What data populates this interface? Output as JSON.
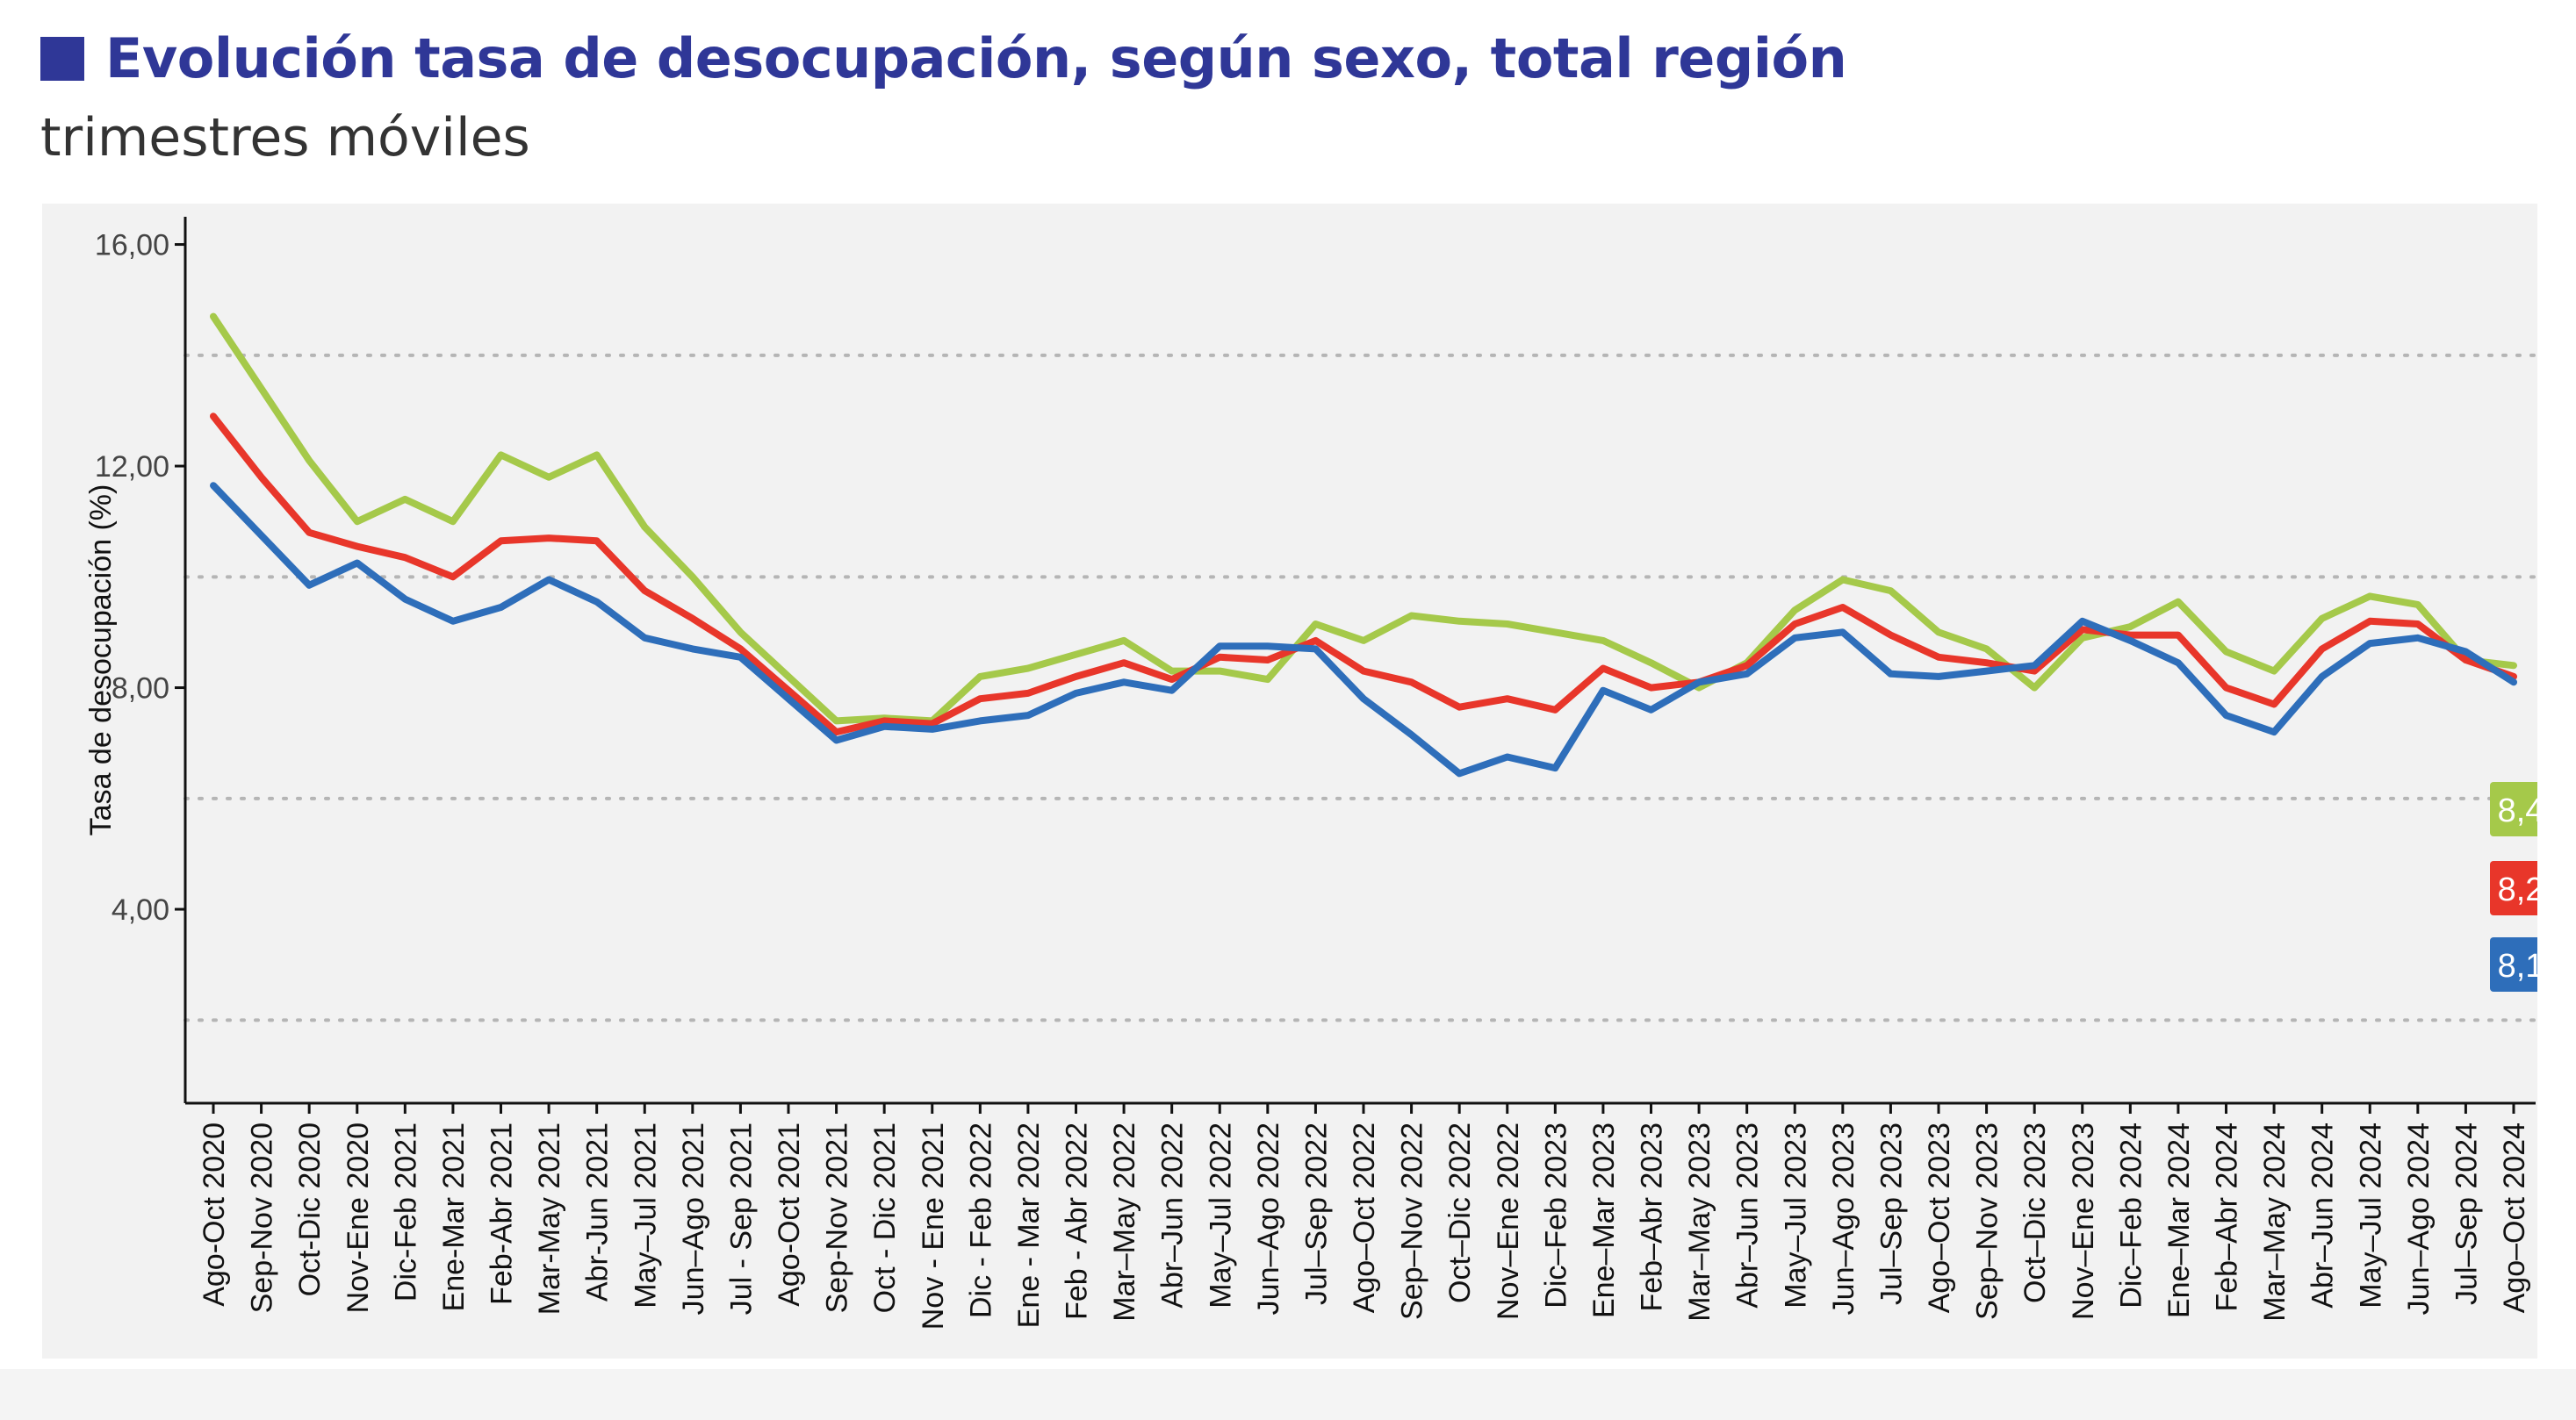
{
  "header": {
    "title": "Evolución tasa de desocupación, según sexo, total región",
    "subtitle": "trimestres móviles",
    "accent_color": "#2f3797"
  },
  "chart_data": {
    "type": "line",
    "title": "Evolución tasa de desocupación, según sexo, total región",
    "subtitle": "trimestres móviles",
    "xlabel": "",
    "ylabel": "Tasa de desocupación (%)",
    "ylim": [
      0.5,
      16.5
    ],
    "yticks": [
      4,
      8,
      12,
      16
    ],
    "ytick_labels": [
      "4,00",
      "8,00",
      "12,00",
      "16,00"
    ],
    "grid": "dotted horizontal lines at 2, 6, 10, 14",
    "background": "#f2f2f2",
    "categories": [
      "Ago-Oct 2020",
      "Sep-Nov 2020",
      "Oct-Dic 2020",
      "Nov-Ene 2020",
      "Dic-Feb 2021",
      "Ene-Mar 2021",
      "Feb-Abr 2021",
      "Mar-May 2021",
      "Abr-Jun 2021",
      "May–Jul 2021",
      "Jun–Ago 2021",
      "Jul - Sep 2021",
      "Ago-Oct 2021",
      "Sep-Nov 2021",
      "Oct - Dic 2021",
      "Nov - Ene 2021",
      "Dic - Feb 2022",
      "Ene - Mar 2022",
      "Feb - Abr 2022",
      "Mar–May 2022",
      "Abr–Jun 2022",
      "May–Jul 2022",
      "Jun–Ago 2022",
      "Jul–Sep 2022",
      "Ago–Oct 2022",
      "Sep–Nov 2022",
      "Oct–Dic 2022",
      "Nov–Ene 2022",
      "Dic–Feb 2023",
      "Ene–Mar 2023",
      "Feb–Abr 2023",
      "Mar–May 2023",
      "Abr–Jun 2023",
      "May–Jul 2023",
      "Jun–Ago 2023",
      "Jul–Sep 2023",
      "Ago–Oct 2023",
      "Sep–Nov 2023",
      "Oct–Dic 2023",
      "Nov–Ene 2023",
      "Dic–Feb 2024",
      "Ene–Mar 2024",
      "Feb–Abr 2024",
      "Mar–May 2024",
      "Abr–Jun 2024",
      "May–Jul 2024",
      "Jun–Ago 2024",
      "Jul–Sep 2024",
      "Ago–Oct 2024"
    ],
    "series": [
      {
        "color": "#a5c94a",
        "end_label": "8,4",
        "values": [
          14.7,
          13.4,
          12.1,
          11.0,
          11.4,
          11.0,
          12.2,
          11.8,
          12.2,
          10.9,
          10.0,
          9.0,
          8.2,
          7.4,
          7.45,
          7.4,
          8.2,
          8.35,
          8.6,
          8.85,
          8.3,
          8.3,
          8.15,
          9.15,
          8.85,
          9.3,
          9.2,
          9.15,
          9.0,
          8.85,
          8.45,
          8.0,
          8.45,
          9.4,
          9.95,
          9.75,
          9.0,
          8.7,
          8.0,
          8.9,
          9.1,
          9.55,
          8.65,
          8.3,
          9.25,
          9.65,
          9.5,
          8.5,
          8.4
        ]
      },
      {
        "color": "#e8362a",
        "end_label": "8,2",
        "values": [
          12.9,
          11.8,
          10.8,
          10.55,
          10.35,
          10.0,
          10.65,
          10.7,
          10.65,
          9.75,
          9.25,
          8.7,
          7.95,
          7.2,
          7.4,
          7.35,
          7.8,
          7.9,
          8.2,
          8.45,
          8.15,
          8.55,
          8.5,
          8.85,
          8.3,
          8.1,
          7.65,
          7.8,
          7.6,
          8.35,
          8.0,
          8.1,
          8.4,
          9.15,
          9.45,
          8.95,
          8.55,
          8.45,
          8.3,
          9.05,
          8.95,
          8.95,
          8.0,
          7.7,
          8.7,
          9.2,
          9.15,
          8.5,
          8.2
        ]
      },
      {
        "color": "#2e6eba",
        "end_label": "8,1",
        "values": [
          11.65,
          10.75,
          9.85,
          10.25,
          9.6,
          9.2,
          9.45,
          9.95,
          9.55,
          8.9,
          8.7,
          8.55,
          7.8,
          7.05,
          7.3,
          7.25,
          7.4,
          7.5,
          7.9,
          8.1,
          7.95,
          8.75,
          8.75,
          8.7,
          7.8,
          7.15,
          6.45,
          6.75,
          6.55,
          7.95,
          7.6,
          8.1,
          8.25,
          8.9,
          9.0,
          8.25,
          8.2,
          8.3,
          8.4,
          9.2,
          8.85,
          8.45,
          7.5,
          7.2,
          8.2,
          8.8,
          8.9,
          8.65,
          8.1
        ]
      }
    ]
  }
}
